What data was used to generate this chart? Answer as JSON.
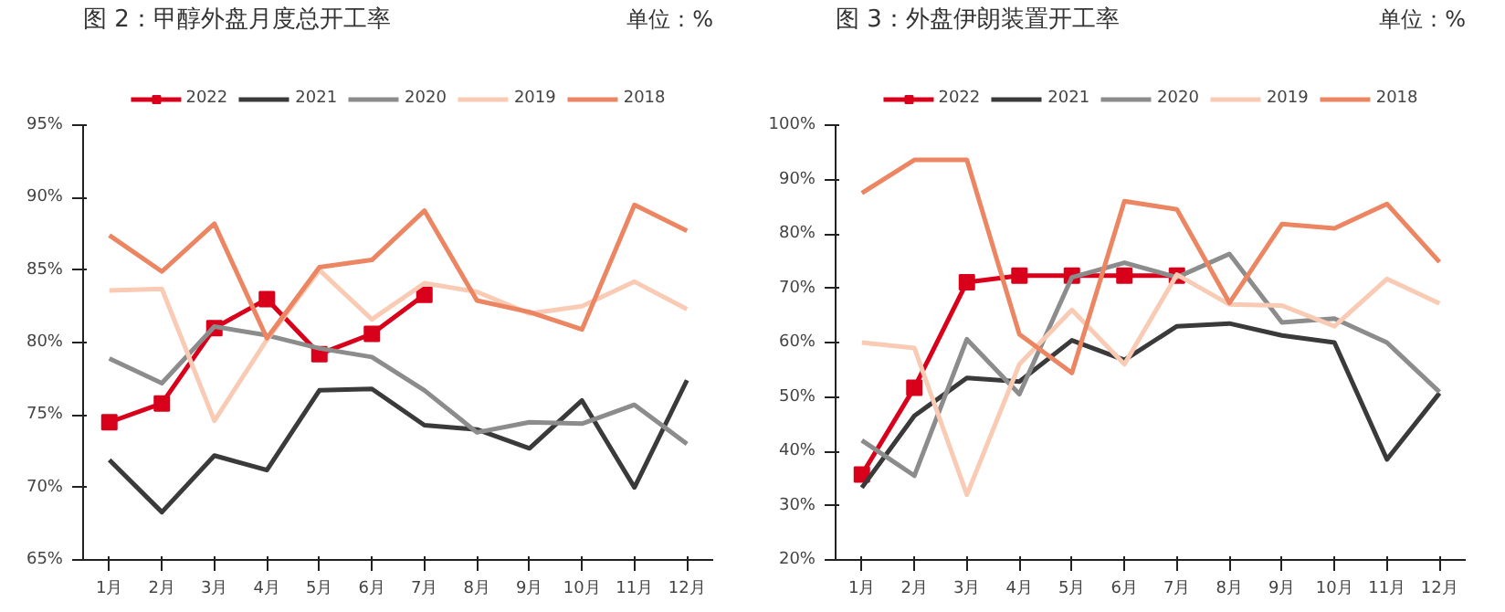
{
  "chart_data": [
    {
      "type": "line",
      "title": "图 2：甲醇外盘月度总开工率",
      "subtitle": "单位：%",
      "legend": "top",
      "grid": false,
      "categories": [
        "1月",
        "2月",
        "3月",
        "4月",
        "5月",
        "6月",
        "7月",
        "8月",
        "9月",
        "10月",
        "11月",
        "12月"
      ],
      "ylim": [
        65,
        95
      ],
      "yticks": [
        {
          "value": 65,
          "label": "65%"
        },
        {
          "value": 70,
          "label": "70%"
        },
        {
          "value": 75,
          "label": "75%"
        },
        {
          "value": 80,
          "label": "80%"
        },
        {
          "value": 85,
          "label": "85%"
        },
        {
          "value": 90,
          "label": "90%"
        },
        {
          "value": 95,
          "label": "95%"
        }
      ],
      "series": [
        {
          "name": "2022",
          "color": "#d9001b",
          "marker": "square",
          "values": [
            74.5,
            75.8,
            81.0,
            83.0,
            79.2,
            80.6,
            83.3,
            null,
            null,
            null,
            null,
            null
          ]
        },
        {
          "name": "2021",
          "color": "#3a3a3a",
          "values": [
            71.9,
            68.3,
            72.2,
            71.2,
            76.7,
            76.8,
            74.3,
            74.0,
            72.7,
            76.0,
            70.0,
            77.4
          ]
        },
        {
          "name": "2020",
          "color": "#8c8c8c",
          "values": [
            78.9,
            77.2,
            81.1,
            80.5,
            79.6,
            79.0,
            76.7,
            73.8,
            74.5,
            74.4,
            75.7,
            73.0
          ]
        },
        {
          "name": "2019",
          "color": "#f9cbb5",
          "values": [
            83.6,
            83.7,
            74.6,
            80.2,
            85.0,
            81.6,
            84.1,
            83.5,
            82.0,
            82.5,
            84.2,
            82.3
          ]
        },
        {
          "name": "2018",
          "color": "#ec8561",
          "values": [
            87.4,
            84.9,
            88.2,
            80.3,
            85.2,
            85.7,
            89.1,
            82.9,
            82.1,
            80.9,
            89.5,
            87.7
          ]
        }
      ]
    },
    {
      "type": "line",
      "title": "图 3：外盘伊朗装置开工率",
      "subtitle": "单位：%",
      "legend": "top",
      "grid": false,
      "categories": [
        "1月",
        "2月",
        "3月",
        "4月",
        "5月",
        "6月",
        "7月",
        "8月",
        "9月",
        "10月",
        "11月",
        "12月"
      ],
      "ylim": [
        20,
        100
      ],
      "yticks": [
        {
          "value": 20,
          "label": "20%"
        },
        {
          "value": 30,
          "label": "30%"
        },
        {
          "value": 40,
          "label": "40%"
        },
        {
          "value": 50,
          "label": "50%"
        },
        {
          "value": 60,
          "label": "60%"
        },
        {
          "value": 70,
          "label": "70%"
        },
        {
          "value": 80,
          "label": "80%"
        },
        {
          "value": 90,
          "label": "90%"
        },
        {
          "value": 100,
          "label": "100%"
        }
      ],
      "series": [
        {
          "name": "2022",
          "color": "#d9001b",
          "marker": "square",
          "values": [
            35.7,
            51.7,
            71.1,
            72.3,
            72.3,
            72.3,
            72.3,
            null,
            null,
            null,
            null,
            null
          ]
        },
        {
          "name": "2021",
          "color": "#3a3a3a",
          "values": [
            33.3,
            46.5,
            53.5,
            52.8,
            60.4,
            56.8,
            63.0,
            63.5,
            61.3,
            60.0,
            38.5,
            50.7
          ]
        },
        {
          "name": "2020",
          "color": "#8c8c8c",
          "values": [
            42,
            35.5,
            60.6,
            50.5,
            72.0,
            74.7,
            72.0,
            76.3,
            63.7,
            64.4,
            60.0,
            50.9
          ]
        },
        {
          "name": "2019",
          "color": "#f9cbb5",
          "values": [
            60,
            59,
            32,
            56,
            66,
            56,
            72.5,
            67,
            66.8,
            63,
            71.7,
            67.2
          ]
        },
        {
          "name": "2018",
          "color": "#ec8561",
          "values": [
            87.5,
            93.6,
            93.6,
            61.5,
            54.4,
            86.0,
            84.5,
            67.3,
            81.8,
            81.0,
            85.5,
            74.8
          ]
        }
      ]
    }
  ]
}
